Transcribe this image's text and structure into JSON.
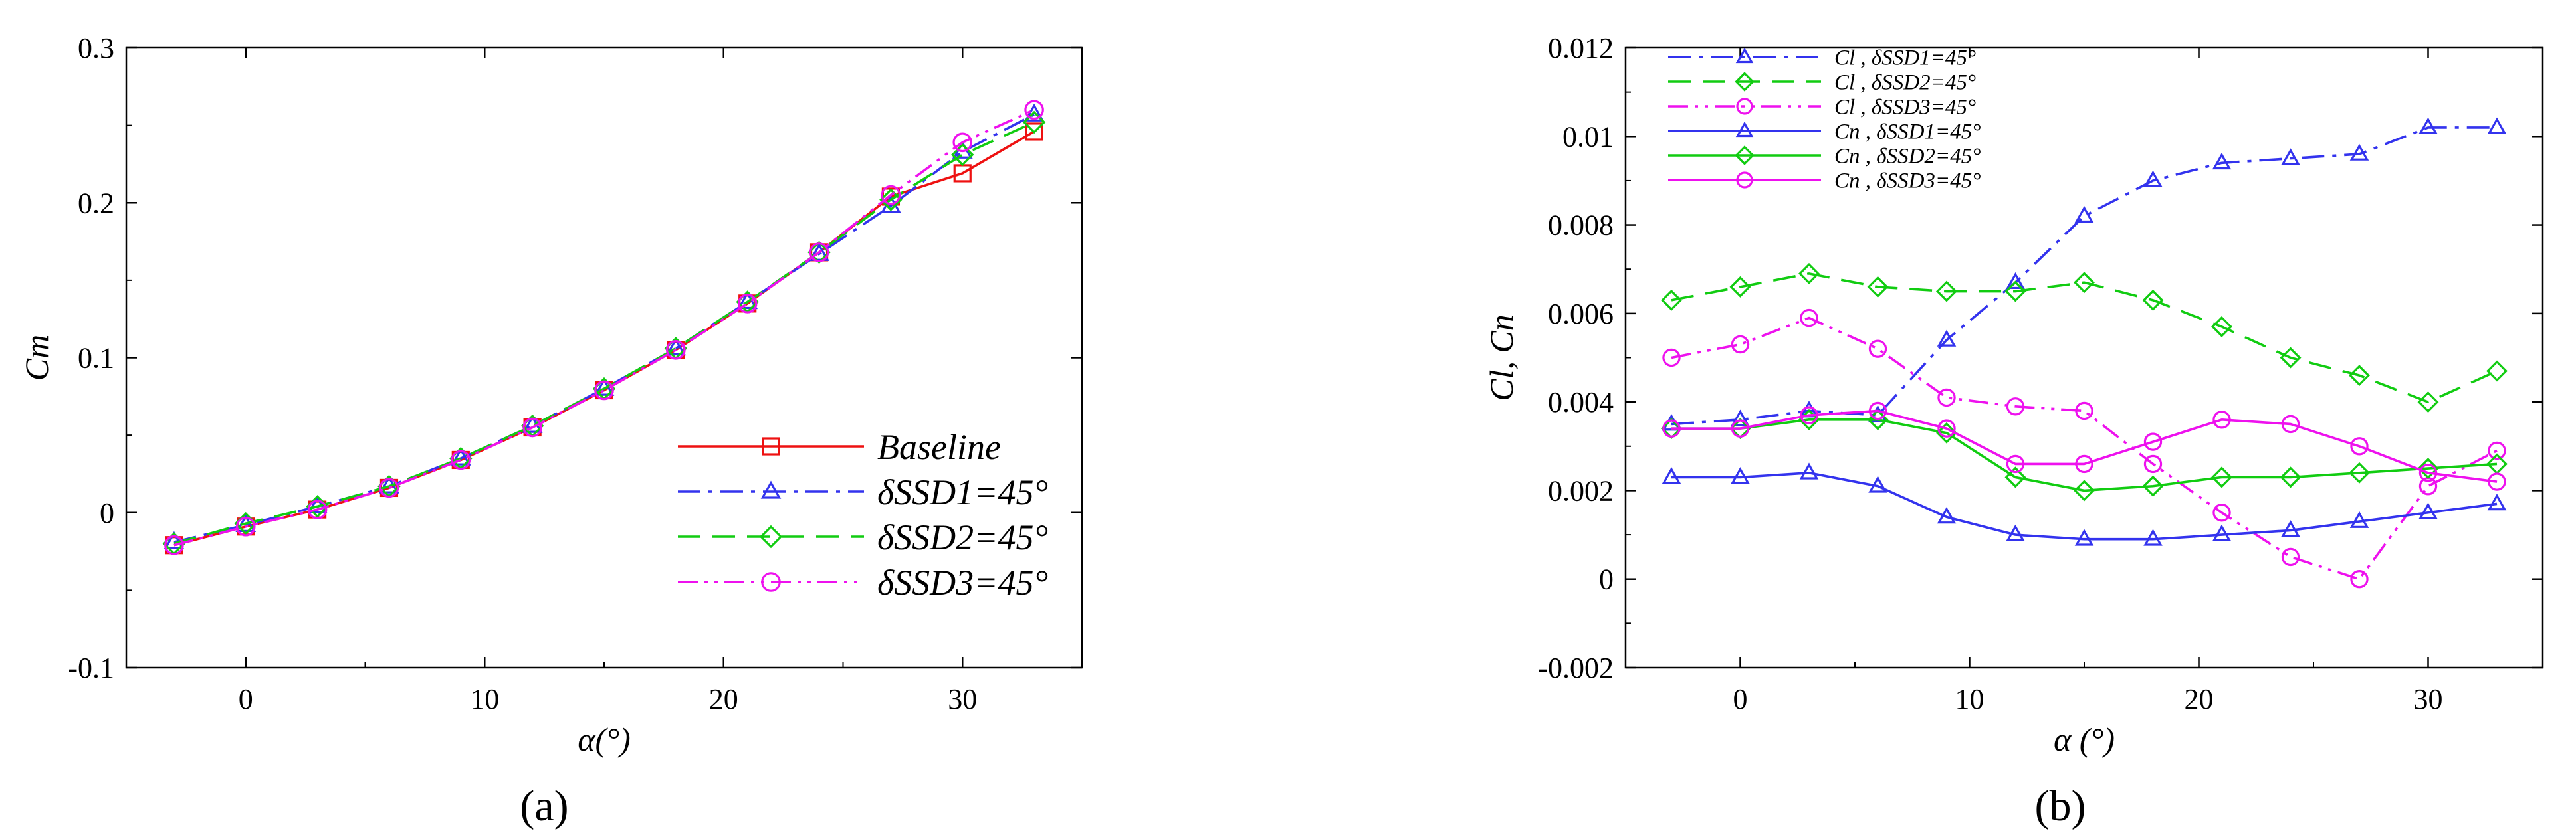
{
  "chart_data": [
    {
      "type": "line",
      "caption": "(a)",
      "xlabel": "α(°)",
      "ylabel": "Cm",
      "xlim": [
        -5,
        35
      ],
      "ylim": [
        -0.1,
        0.3
      ],
      "xticks": [
        0,
        10,
        20,
        30
      ],
      "yticks": [
        -0.1,
        0,
        0.1,
        0.2,
        0.3
      ],
      "ytick_labels": [
        "-0.1",
        "0",
        "0.1",
        "0.2",
        "0.3"
      ],
      "grid": false,
      "legend_position": "bottom-right",
      "x": [
        -3,
        0,
        3,
        6,
        9,
        12,
        15,
        18,
        21,
        24,
        27,
        30,
        33
      ],
      "series": [
        {
          "name": "Baseline",
          "color": "#ee1111",
          "marker": "square",
          "dash": "solid",
          "values": [
            -0.021,
            -0.009,
            0.002,
            0.016,
            0.034,
            0.055,
            0.079,
            0.105,
            0.135,
            0.168,
            0.204,
            0.219,
            0.246
          ]
        },
        {
          "name": "δSSD1=45°",
          "color": "#3333ee",
          "marker": "triangle",
          "dash": "dashdot",
          "values": [
            -0.019,
            -0.008,
            0.004,
            0.017,
            0.035,
            0.056,
            0.08,
            0.106,
            0.136,
            0.167,
            0.198,
            0.233,
            0.257
          ]
        },
        {
          "name": "δSSD2=45°",
          "color": "#11cc11",
          "marker": "diamond",
          "dash": "dash",
          "values": [
            -0.02,
            -0.007,
            0.004,
            0.017,
            0.035,
            0.056,
            0.08,
            0.106,
            0.136,
            0.168,
            0.202,
            0.231,
            0.252
          ]
        },
        {
          "name": "δSSD3=45°",
          "color": "#ee11ee",
          "marker": "circle",
          "dash": "dashdotdot",
          "values": [
            -0.021,
            -0.009,
            0.002,
            0.016,
            0.034,
            0.055,
            0.079,
            0.105,
            0.135,
            0.168,
            0.205,
            0.239,
            0.26
          ]
        }
      ]
    },
    {
      "type": "line",
      "caption": "(b)",
      "xlabel": "α (°)",
      "ylabel": "Cl, Cn",
      "xlim": [
        -5,
        35
      ],
      "ylim": [
        -0.002,
        0.012
      ],
      "xticks": [
        0,
        10,
        20,
        30
      ],
      "yticks": [
        -0.002,
        0,
        0.002,
        0.004,
        0.006,
        0.008,
        0.01,
        0.012
      ],
      "ytick_labels": [
        "-0.002",
        "0",
        "0.002",
        "0.004",
        "0.006",
        "0.008",
        "0.01",
        "0.012"
      ],
      "grid": false,
      "legend_position": "top-left",
      "x": [
        -3,
        0,
        3,
        6,
        9,
        12,
        15,
        18,
        21,
        24,
        27,
        30,
        33
      ],
      "series": [
        {
          "name": "Cl , δSSD1=45°",
          "color": "#3333ee",
          "marker": "triangle",
          "dash": "dashdot",
          "values": [
            0.0035,
            0.0036,
            0.0038,
            0.0037,
            0.0054,
            0.0067,
            0.0082,
            0.009,
            0.0094,
            0.0095,
            0.0096,
            0.0102,
            0.0102
          ]
        },
        {
          "name": "Cl , δSSD2=45°",
          "color": "#11cc11",
          "marker": "diamond",
          "dash": "dash",
          "values": [
            0.0063,
            0.0066,
            0.0069,
            0.0066,
            0.0065,
            0.0065,
            0.0067,
            0.0063,
            0.0057,
            0.005,
            0.0046,
            0.004,
            0.0047
          ]
        },
        {
          "name": "Cl , δSSD3=45°",
          "color": "#ee11ee",
          "marker": "circle",
          "dash": "dashdotdot",
          "values": [
            0.005,
            0.0053,
            0.0059,
            0.0052,
            0.0041,
            0.0039,
            0.0038,
            0.0026,
            0.0015,
            0.0005,
            0.0,
            0.0021,
            0.0029
          ]
        },
        {
          "name": "Cn , δSSD1=45°",
          "color": "#3333ee",
          "marker": "triangle",
          "dash": "solid",
          "values": [
            0.0023,
            0.0023,
            0.0024,
            0.0021,
            0.0014,
            0.001,
            0.0009,
            0.0009,
            0.001,
            0.0011,
            0.0013,
            0.0015,
            0.0017
          ]
        },
        {
          "name": "Cn , δSSD2=45°",
          "color": "#11cc11",
          "marker": "diamond",
          "dash": "solid",
          "values": [
            0.0034,
            0.0034,
            0.0036,
            0.0036,
            0.0033,
            0.0023,
            0.002,
            0.0021,
            0.0023,
            0.0023,
            0.0024,
            0.0025,
            0.0026
          ]
        },
        {
          "name": "Cn , δSSD3=45°",
          "color": "#ee11ee",
          "marker": "circle",
          "dash": "solid",
          "values": [
            0.0034,
            0.0034,
            0.0037,
            0.0038,
            0.0034,
            0.0026,
            0.0026,
            0.0031,
            0.0036,
            0.0035,
            0.003,
            0.0024,
            0.0022
          ]
        }
      ]
    }
  ]
}
